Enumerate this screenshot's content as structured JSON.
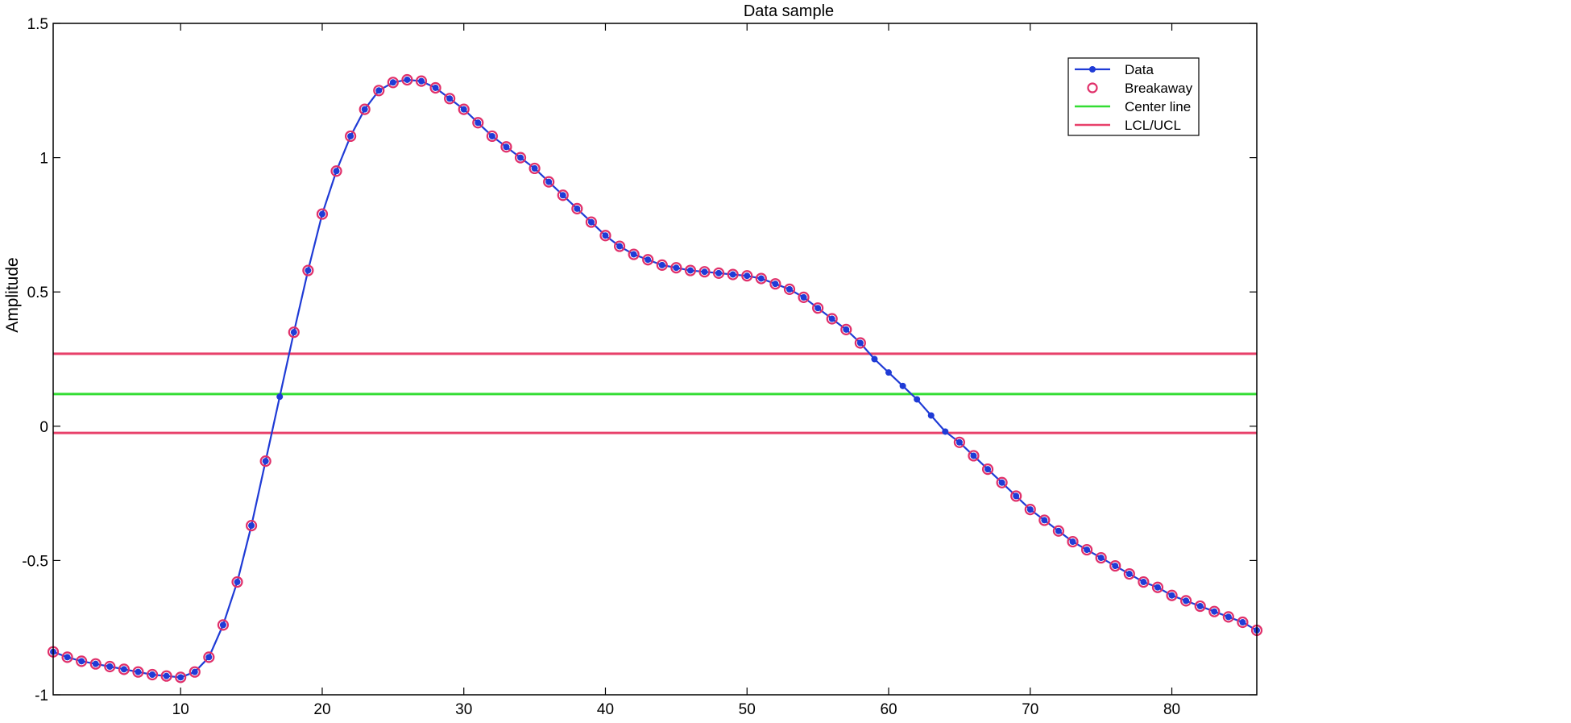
{
  "chart_data": {
    "type": "line",
    "title": "Data sample",
    "xlabel": "",
    "ylabel": "Amplitude",
    "xlim": [
      1,
      86
    ],
    "ylim": [
      -1,
      1.5
    ],
    "xticks": [
      10,
      20,
      30,
      40,
      50,
      60,
      70,
      80
    ],
    "yticks": [
      -1,
      -0.5,
      0,
      0.5,
      1,
      1.5
    ],
    "grid": false,
    "legend_position": "top-right",
    "x": [
      1,
      2,
      3,
      4,
      5,
      6,
      7,
      8,
      9,
      10,
      11,
      12,
      13,
      14,
      15,
      16,
      17,
      18,
      19,
      20,
      21,
      22,
      23,
      24,
      25,
      26,
      27,
      28,
      29,
      30,
      31,
      32,
      33,
      34,
      35,
      36,
      37,
      38,
      39,
      40,
      41,
      42,
      43,
      44,
      45,
      46,
      47,
      48,
      49,
      50,
      51,
      52,
      53,
      54,
      55,
      56,
      57,
      58,
      59,
      60,
      61,
      62,
      63,
      64,
      65,
      66,
      67,
      68,
      69,
      70,
      71,
      72,
      73,
      74,
      75,
      76,
      77,
      78,
      79,
      80,
      81,
      82,
      83,
      84,
      85,
      86
    ],
    "series": [
      {
        "name": "Data",
        "color": "#1f3bd6",
        "values": [
          -0.84,
          -0.86,
          -0.875,
          -0.885,
          -0.895,
          -0.905,
          -0.915,
          -0.925,
          -0.93,
          -0.935,
          -0.915,
          -0.86,
          -0.74,
          -0.58,
          -0.37,
          -0.13,
          0.11,
          0.35,
          0.58,
          0.79,
          0.95,
          1.08,
          1.18,
          1.25,
          1.28,
          1.29,
          1.285,
          1.26,
          1.22,
          1.18,
          1.13,
          1.08,
          1.04,
          1.0,
          0.96,
          0.91,
          0.86,
          0.81,
          0.76,
          0.71,
          0.67,
          0.64,
          0.62,
          0.6,
          0.59,
          0.58,
          0.575,
          0.57,
          0.565,
          0.56,
          0.55,
          0.53,
          0.51,
          0.48,
          0.44,
          0.4,
          0.36,
          0.31,
          0.25,
          0.2,
          0.15,
          0.1,
          0.04,
          -0.02,
          -0.06,
          -0.11,
          -0.16,
          -0.21,
          -0.26,
          -0.31,
          -0.35,
          -0.39,
          -0.43,
          -0.46,
          -0.49,
          -0.52,
          -0.55,
          -0.58,
          -0.6,
          -0.63,
          -0.65,
          -0.67,
          -0.69,
          -0.71,
          -0.73,
          -0.76
        ]
      }
    ],
    "breakaway": {
      "name": "Breakaway",
      "color": "#e0306a",
      "x": [
        1,
        2,
        3,
        4,
        5,
        6,
        7,
        8,
        9,
        10,
        11,
        12,
        13,
        14,
        15,
        16,
        18,
        19,
        20,
        21,
        22,
        23,
        24,
        25,
        26,
        27,
        28,
        29,
        30,
        31,
        32,
        33,
        34,
        35,
        36,
        37,
        38,
        39,
        40,
        41,
        42,
        43,
        44,
        45,
        46,
        47,
        48,
        49,
        50,
        51,
        52,
        53,
        54,
        55,
        56,
        57,
        58,
        65,
        66,
        67,
        68,
        69,
        70,
        71,
        72,
        73,
        74,
        75,
        76,
        77,
        78,
        79,
        80,
        81,
        82,
        83,
        84,
        85,
        86
      ]
    },
    "center_line": {
      "name": "Center line",
      "value": 0.12,
      "color": "#33dd33"
    },
    "control_limits": {
      "name": "LCL/UCL",
      "lcl": -0.025,
      "ucl": 0.27,
      "color": "#e8406a"
    }
  }
}
